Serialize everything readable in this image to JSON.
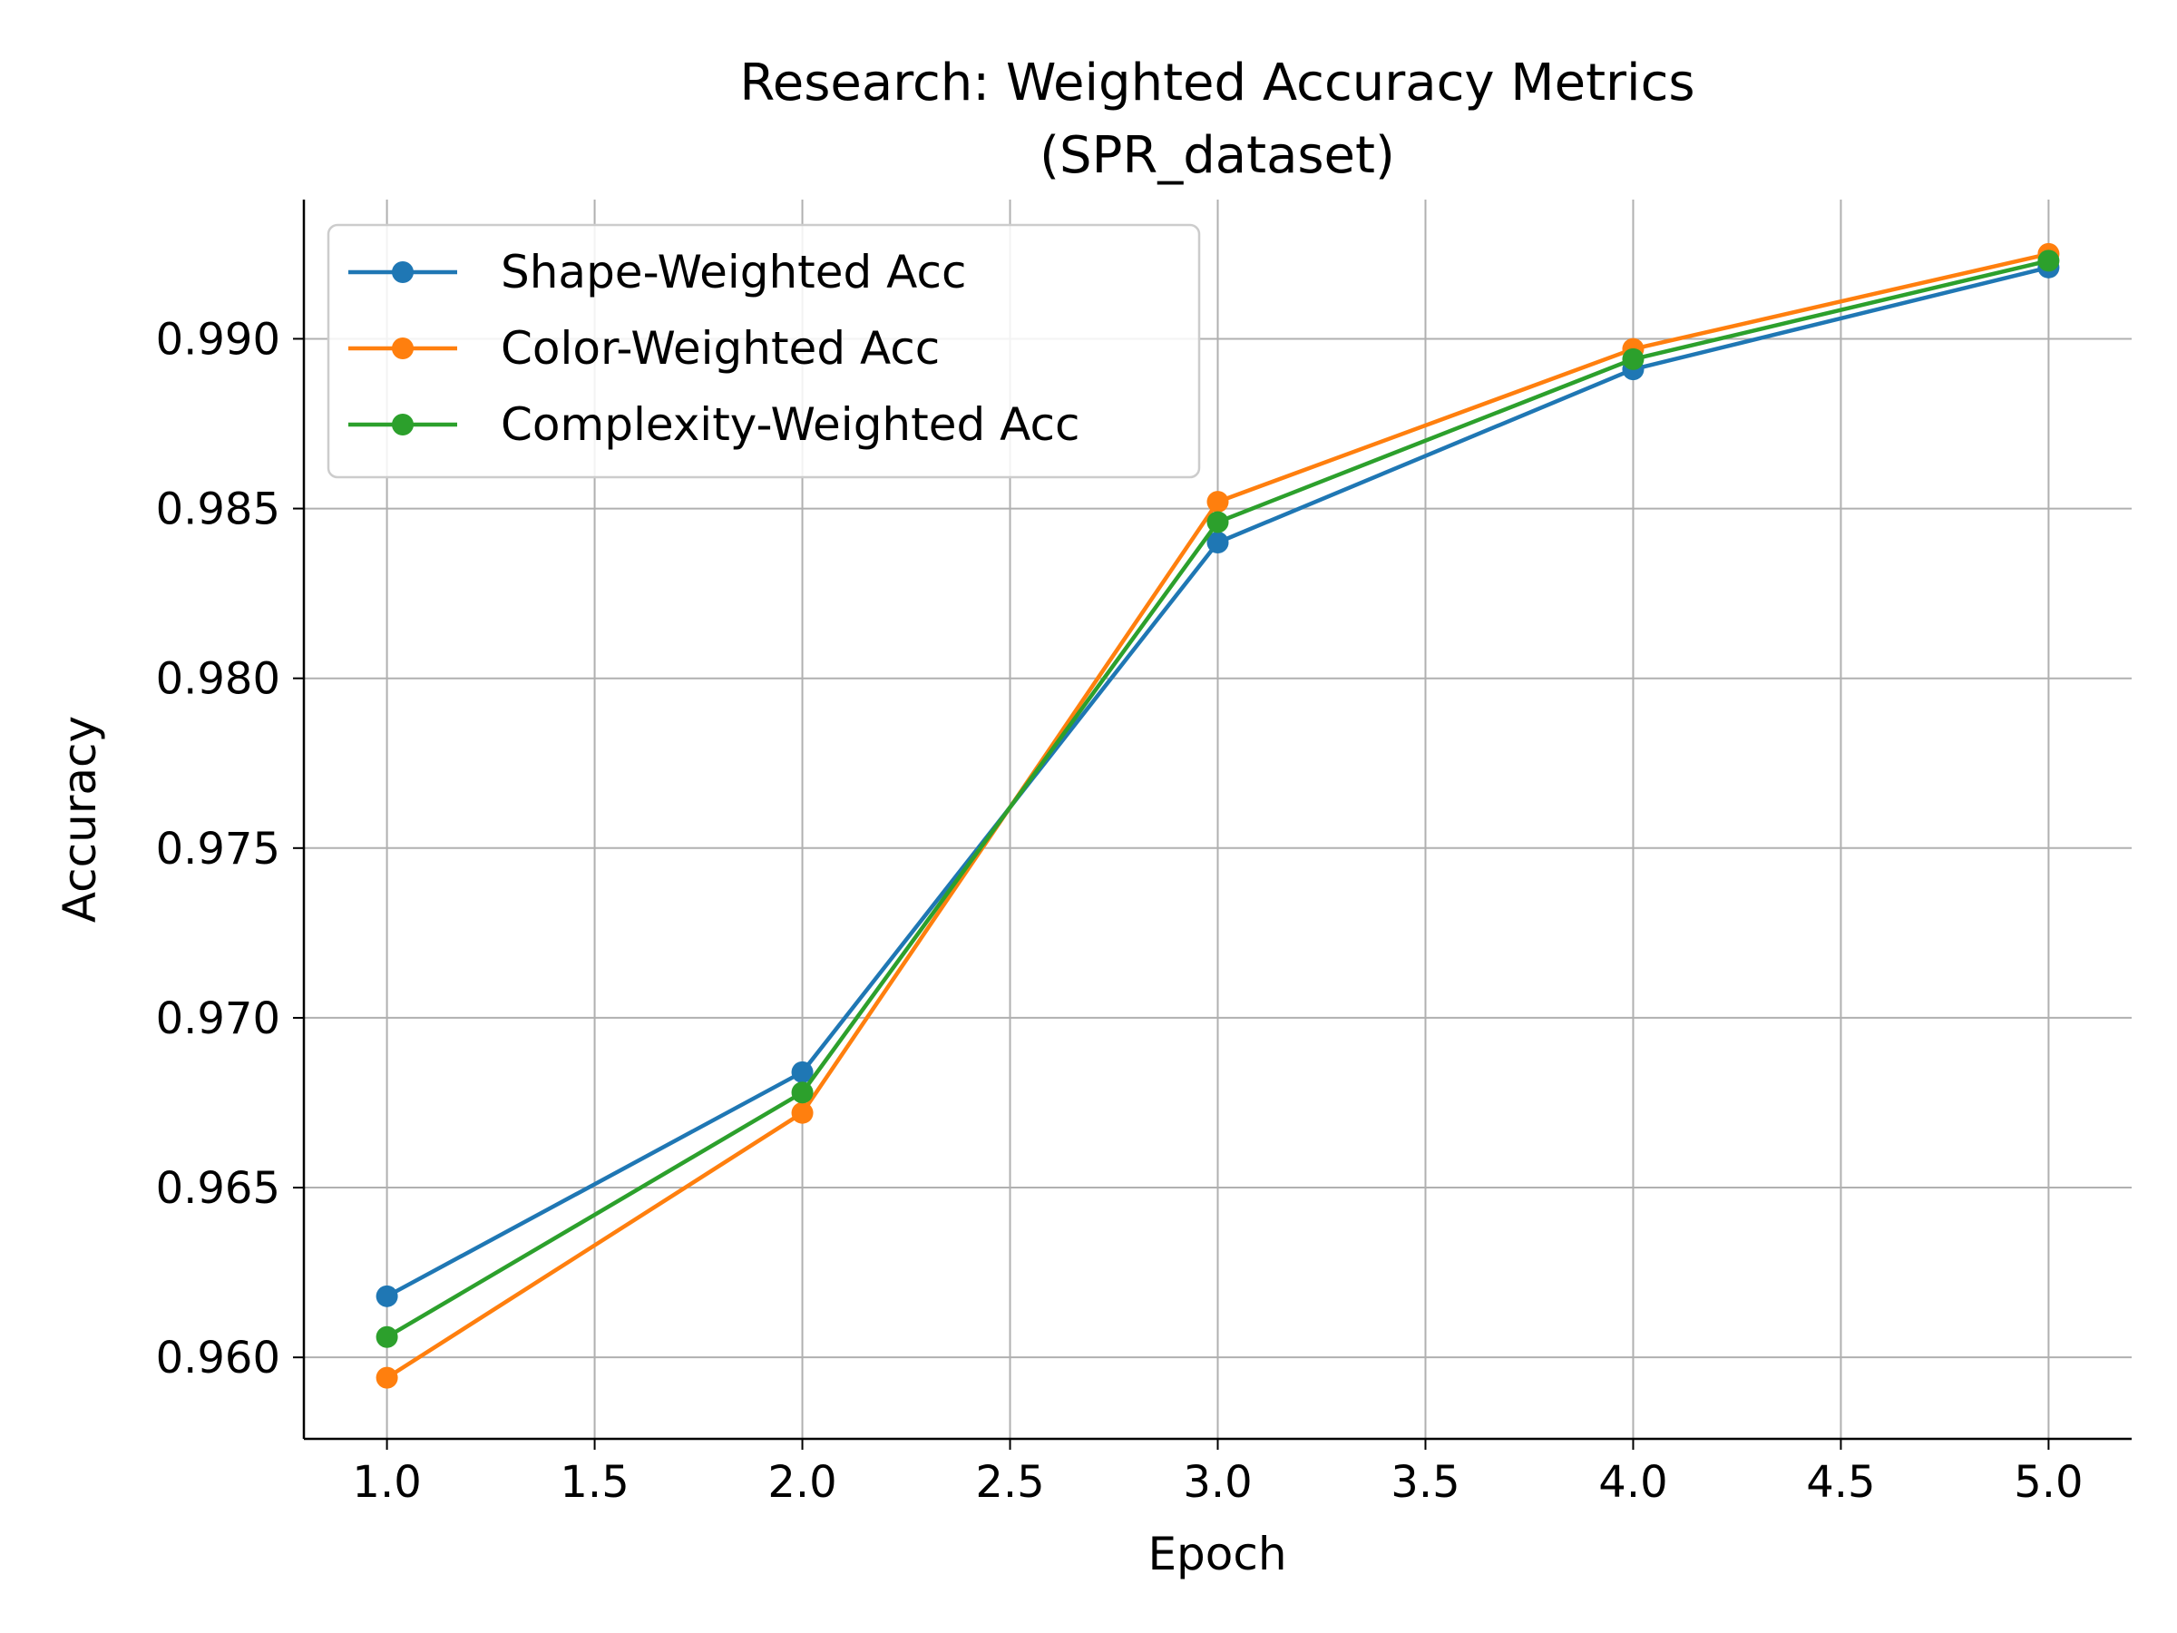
{
  "chart_data": {
    "type": "line",
    "title": "Research: Weighted Accuracy Metrics",
    "subtitle": "(SPR_dataset)",
    "xlabel": "Epoch",
    "ylabel": "Accuracy",
    "x": [
      1.0,
      2.0,
      3.0,
      4.0,
      5.0
    ],
    "xlim": [
      0.8,
      5.2
    ],
    "ylim": [
      0.9576,
      0.9941
    ],
    "xticks": [
      1.0,
      1.5,
      2.0,
      2.5,
      3.0,
      3.5,
      4.0,
      4.5,
      5.0
    ],
    "xtick_labels": [
      "1.0",
      "1.5",
      "2.0",
      "2.5",
      "3.0",
      "3.5",
      "4.0",
      "4.5",
      "5.0"
    ],
    "yticks": [
      0.96,
      0.965,
      0.97,
      0.975,
      0.98,
      0.985,
      0.99
    ],
    "ytick_labels": [
      "0.960",
      "0.965",
      "0.970",
      "0.975",
      "0.980",
      "0.985",
      "0.990"
    ],
    "grid": true,
    "legend_position": "top-left",
    "series": [
      {
        "name": "Shape-Weighted Acc",
        "color": "#1f77b4",
        "marker": "circle",
        "values": [
          0.9618,
          0.9684,
          0.984,
          0.9891,
          0.9921
        ]
      },
      {
        "name": "Color-Weighted Acc",
        "color": "#ff7f0e",
        "marker": "circle",
        "values": [
          0.9594,
          0.9672,
          0.9852,
          0.9897,
          0.9925
        ]
      },
      {
        "name": "Complexity-Weighted Acc",
        "color": "#2ca02c",
        "marker": "circle",
        "values": [
          0.9606,
          0.9678,
          0.9846,
          0.9894,
          0.9923
        ]
      }
    ]
  }
}
